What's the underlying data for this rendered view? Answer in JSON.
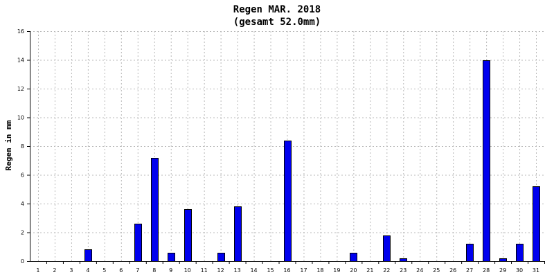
{
  "chart_data": {
    "type": "bar",
    "title": "Regen MAR. 2018",
    "subtitle": "(gesamt 52.0mm)",
    "ylabel": "Regen in mm",
    "xlabel": "",
    "ylim": [
      0,
      16
    ],
    "yticks": [
      "0",
      "2",
      "4",
      "6",
      "8",
      "10",
      "12",
      "14",
      "16"
    ],
    "grid": true,
    "bar_color": "#0000ee",
    "categories": [
      "1",
      "2",
      "3",
      "4",
      "5",
      "6",
      "7",
      "8",
      "9",
      "10",
      "11",
      "12",
      "13",
      "14",
      "15",
      "16",
      "17",
      "18",
      "19",
      "20",
      "21",
      "22",
      "23",
      "24",
      "25",
      "26",
      "27",
      "28",
      "29",
      "30",
      "31"
    ],
    "values": [
      0,
      0,
      0,
      0.8,
      0,
      0,
      2.6,
      7.2,
      0.6,
      3.6,
      0,
      0.6,
      3.8,
      0,
      0,
      8.4,
      0,
      0,
      0,
      0.6,
      0,
      1.8,
      0.2,
      0,
      0,
      0,
      1.2,
      14.0,
      0.2,
      1.2,
      5.2
    ]
  }
}
